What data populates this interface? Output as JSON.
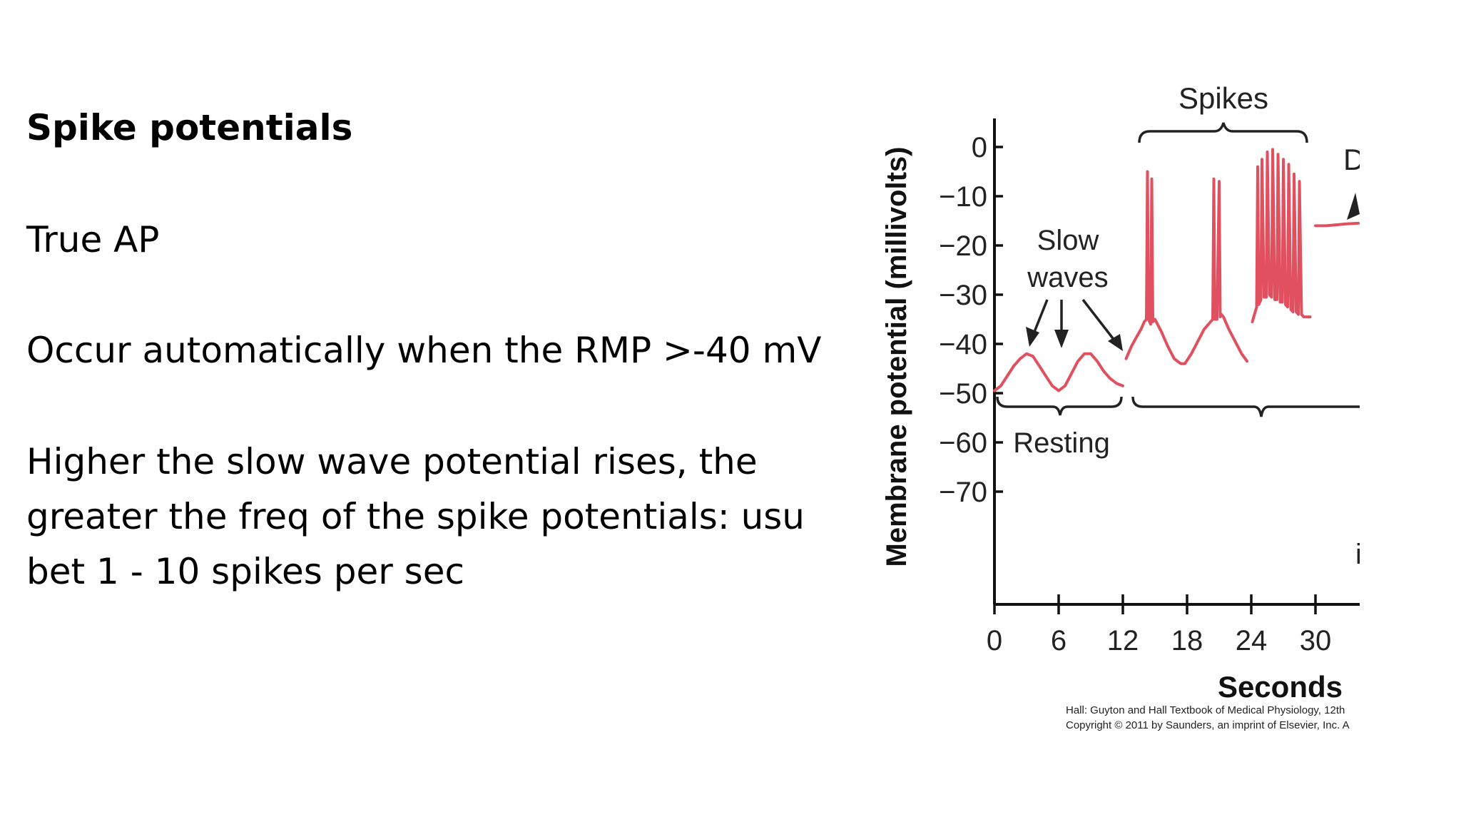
{
  "slide": {
    "title": "Spike potentials",
    "bullets": [
      "True AP",
      "Occur automatically when the RMP >-40 mV",
      "Higher the slow wave potential rises, the greater the freq of the spike potentials: usu bet 1 - 10 spikes per sec"
    ]
  },
  "chart_data": {
    "type": "line",
    "title": "",
    "xlabel": "Seconds",
    "ylabel": "Membrane potential (millivolts)",
    "xlim": [
      0,
      34
    ],
    "ylim": [
      -90,
      5
    ],
    "x_ticks": [
      0,
      6,
      12,
      18,
      24,
      30
    ],
    "y_ticks": [
      0,
      -10,
      -20,
      -30,
      -40,
      -50,
      -60,
      -70
    ],
    "x_tick_labels": [
      "0",
      "6",
      "12",
      "18",
      "24",
      "30"
    ],
    "y_tick_labels": [
      "0",
      "−10",
      "−20",
      "−30",
      "−40",
      "−50",
      "−60",
      "−70"
    ],
    "line_color": "#e0505f",
    "series": [
      {
        "x": [
          0,
          0.6,
          1.2,
          1.8,
          2.4,
          3.0,
          3.6,
          4.2,
          4.8,
          5.4,
          6.0,
          6.6,
          7.2,
          7.8,
          8.4,
          9.0,
          9.6,
          10.2,
          10.8,
          11.4,
          12.0
        ],
        "y": [
          -49.5,
          -48.5,
          -46.5,
          -44.5,
          -43.0,
          -42.0,
          -42.5,
          -44.5,
          -46.5,
          -48.5,
          -49.5,
          -48.5,
          -46.0,
          -43.5,
          -42.0,
          -42.0,
          -43.5,
          -45.5,
          -47.0,
          -48.0,
          -48.5
        ]
      },
      {
        "x": [
          12.3,
          12.8,
          13.3,
          13.7,
          14.0,
          14.2,
          14.3,
          14.4,
          14.6,
          14.7,
          14.8,
          15.0,
          15.6,
          16.2,
          16.8,
          17.4,
          17.8,
          18.4,
          19.0,
          19.6,
          20.0,
          20.4,
          20.5,
          20.6,
          20.8,
          21.0,
          21.1,
          21.2,
          21.4,
          21.9,
          22.5,
          23.1,
          23.6
        ],
        "y": [
          -43.0,
          -40.5,
          -38.5,
          -37.0,
          -35.5,
          -35.0,
          -5.0,
          -35.0,
          -36.0,
          -6.5,
          -35.5,
          -35.0,
          -37.5,
          -40.5,
          -43.0,
          -44.0,
          -44.0,
          -42.0,
          -39.5,
          -37.0,
          -36.0,
          -35.0,
          -6.5,
          -35.0,
          -35.0,
          -7.0,
          -34.5,
          -34.0,
          -34.5,
          -37.0,
          -39.5,
          -42.0,
          -43.5
        ]
      },
      {
        "x": [
          24.1,
          24.3,
          24.5,
          24.6,
          24.7,
          24.9,
          25.0,
          25.2,
          25.4,
          25.5,
          25.7,
          25.9,
          26.0,
          26.2,
          26.4,
          26.5,
          26.7,
          26.9,
          27.0,
          27.2,
          27.4,
          27.5,
          27.7,
          27.9,
          28.0,
          28.2,
          28.4,
          28.5,
          28.7,
          28.9,
          29.2,
          29.5
        ],
        "y": [
          -35.5,
          -34.0,
          -32.5,
          -4.0,
          -32.0,
          -31.0,
          -2.5,
          -30.5,
          -30.5,
          -1.0,
          -30.0,
          -30.5,
          -0.5,
          -31.0,
          -31.0,
          -1.5,
          -31.5,
          -31.5,
          -2.5,
          -32.0,
          -32.5,
          -3.5,
          -33.0,
          -33.5,
          -5.5,
          -33.5,
          -34.0,
          -7.0,
          -34.0,
          -34.5,
          -34.5,
          -34.5
        ]
      },
      {
        "x": [
          30.0,
          31.0,
          32.0,
          33.0,
          34.0
        ],
        "y": [
          -16.0,
          -16.0,
          -15.8,
          -15.6,
          -15.5
        ]
      }
    ],
    "annotations": {
      "spikes": "Spikes",
      "slow_waves_line1": "Slow",
      "slow_waves_line2": "waves",
      "resting": "Resting",
      "partial_label": "D",
      "partial_label_2": "i",
      "caption_line1": "Hall: Guyton and Hall Textbook of Medical Physiology, 12th",
      "caption_line2": "Copyright © 2011 by Saunders, an imprint of Elsevier, Inc. A"
    }
  }
}
